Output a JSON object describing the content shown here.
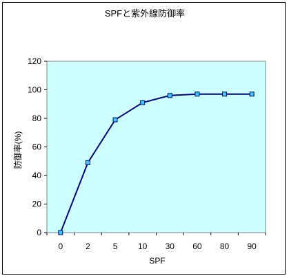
{
  "chart_data": {
    "type": "line",
    "title": "SPFと紫外線防御率",
    "xlabel": "SPF",
    "ylabel": "防御率(%)",
    "categories": [
      "0",
      "2",
      "5",
      "10",
      "30",
      "60",
      "80",
      "90"
    ],
    "series": [
      {
        "values": [
          0,
          49,
          79,
          91,
          96,
          97,
          97,
          97
        ]
      }
    ],
    "ylim": [
      0,
      120
    ],
    "yticks": [
      0,
      20,
      40,
      60,
      80,
      100,
      120
    ],
    "grid": false,
    "legend": "none",
    "colors": {
      "plot_background": "#ccffff",
      "line": "#000080",
      "marker": "#33ccff"
    }
  }
}
